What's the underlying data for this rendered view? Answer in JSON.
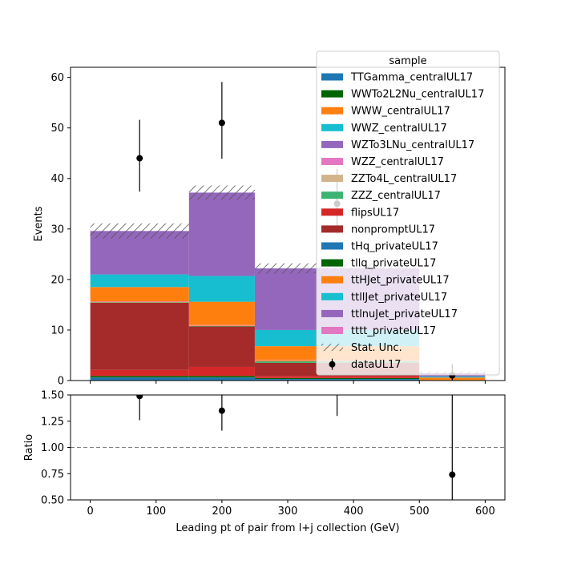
{
  "chart_data": {
    "type": "bar",
    "main": {
      "xlabel": "",
      "ylabel": "Events",
      "xlim": [
        -30,
        630
      ],
      "ylim": [
        0,
        62
      ],
      "yticks": [
        0,
        10,
        20,
        30,
        40,
        50,
        60
      ],
      "bin_edges": [
        0,
        150,
        250,
        500,
        600
      ],
      "stack_order_bottom_to_top": [
        "tHq_privateUL17",
        "tllq_privateUL17",
        "flipsUL17",
        "nonpromptUL17",
        "ZZZ_centralUL17",
        "WWW_centralUL17",
        "WZZ_centralUL17",
        "ttHJet_privateUL17",
        "ttllJet_privateUL17",
        "ttlnuJet_privateUL17"
      ],
      "series": [
        {
          "name": "tHq_privateUL17",
          "color": "#1f77b4",
          "values": [
            0.6,
            0.6,
            0.3,
            0.05
          ]
        },
        {
          "name": "tllq_privateUL17",
          "color": "#006400",
          "values": [
            0.3,
            0.3,
            0.2,
            0.05
          ]
        },
        {
          "name": "flipsUL17",
          "color": "#d62728",
          "values": [
            1.2,
            1.8,
            0.4,
            0.0
          ]
        },
        {
          "name": "nonpromptUL17",
          "color": "#a52a2a",
          "values": [
            13.3,
            8.0,
            2.6,
            0.0
          ]
        },
        {
          "name": "ZZZ_centralUL17",
          "color": "#3cb371",
          "values": [
            0.1,
            0.1,
            0.3,
            0.0
          ]
        },
        {
          "name": "WWW_centralUL17",
          "color": "#ff7f0e",
          "values": [
            0.1,
            0.1,
            0.2,
            0.3
          ]
        },
        {
          "name": "WZZ_centralUL17",
          "color": "#e377c2",
          "values": [
            0.1,
            0.1,
            0.1,
            0.0
          ]
        },
        {
          "name": "ttHJet_privateUL17",
          "color": "#ff7f0e",
          "values": [
            2.8,
            4.6,
            2.7,
            0.2
          ]
        },
        {
          "name": "ttllJet_privateUL17",
          "color": "#17becf",
          "values": [
            2.5,
            5.1,
            3.2,
            0.2
          ]
        },
        {
          "name": "ttlnuJet_privateUL17",
          "color": "#9467bd",
          "values": [
            8.6,
            16.5,
            12.2,
            0.7
          ]
        }
      ],
      "stat_unc": [
        1.5,
        1.4,
        1.0,
        0.3
      ],
      "stat_unc_label": "Stat. Unc.",
      "data": {
        "name": "dataUL17",
        "x": [
          75,
          200,
          375,
          550
        ],
        "y": [
          44,
          51,
          35,
          1
        ],
        "err_low": [
          6.6,
          7.1,
          5.9,
          1.0
        ],
        "err_high": [
          7.6,
          8.1,
          6.9,
          2.3
        ]
      }
    },
    "ratio": {
      "xlabel": "Leading pt of pair from l+j collection (GeV)",
      "ylabel": "Ratio",
      "ylim": [
        0.5,
        1.5
      ],
      "yticks": [
        0.5,
        0.75,
        1.0,
        1.25,
        1.5
      ],
      "ytick_labels": [
        "0.50",
        "0.75",
        "1.00",
        "1.25",
        "1.50"
      ],
      "xticks": [
        0,
        100,
        200,
        300,
        400,
        500,
        600
      ],
      "reference_line": 1.0,
      "points": {
        "x": [
          75,
          200,
          375,
          550
        ],
        "y": [
          1.49,
          1.35,
          1.53,
          0.74
        ],
        "err_low": [
          0.23,
          0.19,
          0.23,
          0.74
        ],
        "err_high": [
          0.23,
          0.19,
          0.23,
          2.0
        ]
      }
    },
    "legend": {
      "title": "sample",
      "placement": "top-right",
      "entries": [
        {
          "label": "TTGamma_centralUL17",
          "color": "#1f77b4",
          "kind": "patch"
        },
        {
          "label": "WWTo2L2Nu_centralUL17",
          "color": "#006400",
          "kind": "patch"
        },
        {
          "label": "WWW_centralUL17",
          "color": "#ff7f0e",
          "kind": "patch"
        },
        {
          "label": "WWZ_centralUL17",
          "color": "#17becf",
          "kind": "patch"
        },
        {
          "label": "WZTo3LNu_centralUL17",
          "color": "#9467bd",
          "kind": "patch"
        },
        {
          "label": "WZZ_centralUL17",
          "color": "#e377c2",
          "kind": "patch"
        },
        {
          "label": "ZZTo4L_centralUL17",
          "color": "#d2b48c",
          "kind": "patch"
        },
        {
          "label": "ZZZ_centralUL17",
          "color": "#3cb371",
          "kind": "patch"
        },
        {
          "label": "flipsUL17",
          "color": "#d62728",
          "kind": "patch"
        },
        {
          "label": "nonpromptUL17",
          "color": "#a52a2a",
          "kind": "patch"
        },
        {
          "label": "tHq_privateUL17",
          "color": "#1f77b4",
          "kind": "patch"
        },
        {
          "label": "tllq_privateUL17",
          "color": "#006400",
          "kind": "patch"
        },
        {
          "label": "ttHJet_privateUL17",
          "color": "#ff7f0e",
          "kind": "patch"
        },
        {
          "label": "ttllJet_privateUL17",
          "color": "#17becf",
          "kind": "patch"
        },
        {
          "label": "ttlnuJet_privateUL17",
          "color": "#9467bd",
          "kind": "patch"
        },
        {
          "label": "tttt_privateUL17",
          "color": "#e377c2",
          "kind": "patch"
        },
        {
          "label": "Stat. Unc.",
          "color": "#808080",
          "kind": "hatch"
        },
        {
          "label": "dataUL17",
          "color": "#000000",
          "kind": "errorbar"
        }
      ]
    }
  }
}
